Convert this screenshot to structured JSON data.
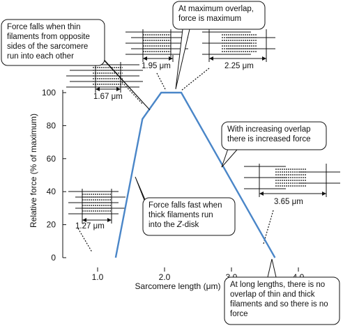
{
  "chart_data": {
    "type": "line",
    "xlabel": "Sarcomere length (μm)",
    "ylabel": "Relative force (% of maximum)",
    "xlim": [
      0.6,
      4.0
    ],
    "ylim": [
      0,
      100
    ],
    "x_ticks": [
      {
        "value": 1.0,
        "label": "1.0"
      },
      {
        "value": 2.0,
        "label": "2.0"
      },
      {
        "value": 3.0,
        "label": "3.0"
      },
      {
        "value": 4.0,
        "label": "4.0"
      }
    ],
    "y_ticks": [
      {
        "value": 0,
        "label": "0"
      },
      {
        "value": 20,
        "label": "20"
      },
      {
        "value": 40,
        "label": "40"
      },
      {
        "value": 60,
        "label": "60"
      },
      {
        "value": 80,
        "label": "80"
      },
      {
        "value": 100,
        "label": "100"
      }
    ],
    "line_color": "#4a86c8",
    "series": [
      {
        "x": [
          1.27,
          1.67,
          1.95,
          2.25,
          3.65
        ],
        "y": [
          0,
          84,
          100,
          100,
          0
        ]
      }
    ],
    "sarcomere_lengths": [
      {
        "label": "1.27 μm",
        "x": 1.27
      },
      {
        "label": "1.67 μm",
        "x": 1.67
      },
      {
        "label": "1.95 μm",
        "x": 1.95
      },
      {
        "label": "2.25 μm",
        "x": 2.25
      },
      {
        "label": "3.65 μm",
        "x": 3.65
      }
    ],
    "annotations": [
      {
        "id": "maximum-overlap",
        "lines": [
          "At maximum overlap,",
          "force is maximum"
        ]
      },
      {
        "id": "thin-filaments-collide",
        "lines": [
          "Force falls when thin",
          "filaments from opposite",
          "sides of the sarcomere",
          "run into each other"
        ]
      },
      {
        "id": "increasing-overlap",
        "lines": [
          "With increasing overlap",
          "there is increased force"
        ]
      },
      {
        "id": "z-disk",
        "lines": [
          "Force falls fast when",
          "thick filaments run",
          "into the Z-disk"
        ]
      },
      {
        "id": "no-overlap",
        "lines": [
          "At long lengths, there is no",
          "overlap of thin and thick",
          "filaments and so there is no",
          "force"
        ]
      }
    ]
  }
}
